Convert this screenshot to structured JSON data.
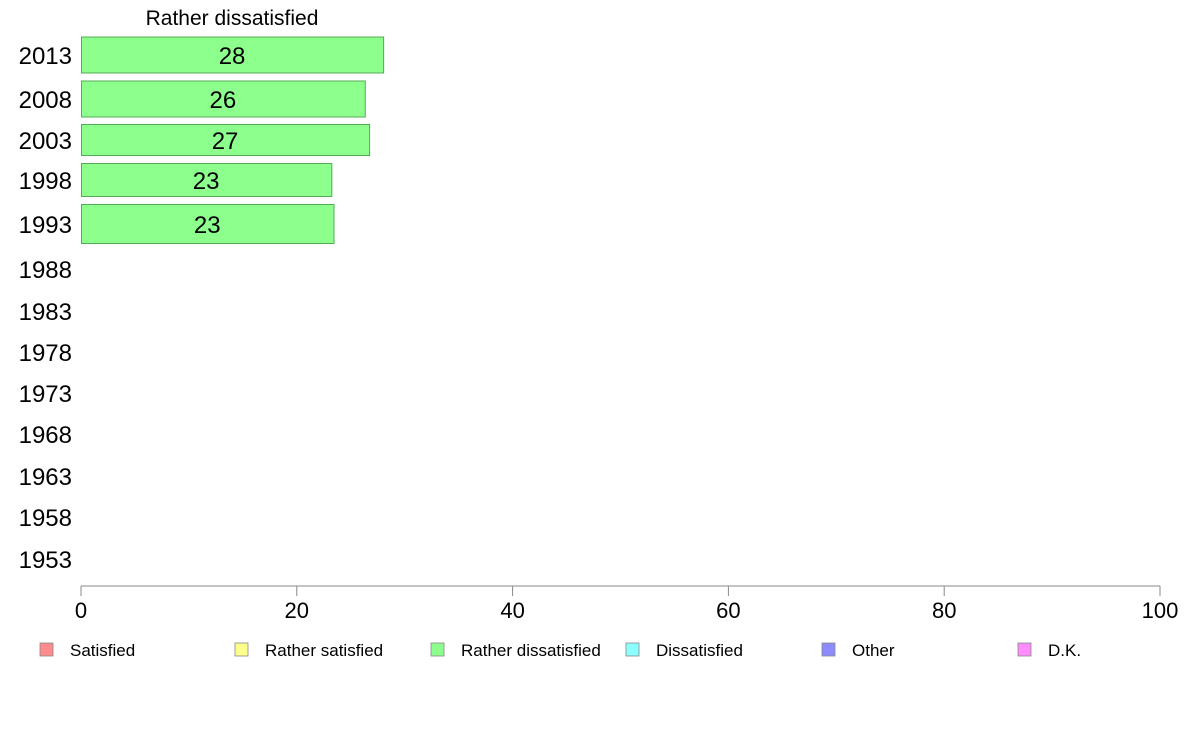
{
  "chart_data": {
    "type": "bar",
    "orientation": "horizontal",
    "title": "Rather dissatisfied",
    "categories": [
      "2013",
      "2008",
      "2003",
      "1998",
      "1993",
      "1988",
      "1983",
      "1978",
      "1973",
      "1968",
      "1963",
      "1958",
      "1953"
    ],
    "series": [
      {
        "name": "Rather dissatisfied",
        "values": [
          28,
          26.3,
          26.7,
          23.2,
          23.4,
          null,
          null,
          null,
          null,
          null,
          null,
          null,
          null
        ],
        "labels": [
          "28",
          "26",
          "27",
          "23",
          "23",
          "",
          "",
          "",
          "",
          "",
          "",
          "",
          ""
        ]
      }
    ],
    "xlim": [
      0,
      100
    ],
    "xticks": [
      "0",
      "20",
      "40",
      "60",
      "80",
      "100"
    ],
    "grid": false,
    "legend": {
      "placement": "bottom",
      "entries": [
        {
          "label": "Satisfied",
          "color": "#ff8c8c"
        },
        {
          "label": "Rather satisfied",
          "color": "#ffff8c"
        },
        {
          "label": "Rather dissatisfied",
          "color": "#8cff8c"
        },
        {
          "label": "Dissatisfied",
          "color": "#8cffff"
        },
        {
          "label": "Other",
          "color": "#8c8cff"
        },
        {
          "label": "D.K.",
          "color": "#ff8cff"
        }
      ]
    },
    "colors": {
      "bar_fill": "#8cff8c",
      "bar_stroke": "#55aa55",
      "axis": "#888888"
    }
  }
}
